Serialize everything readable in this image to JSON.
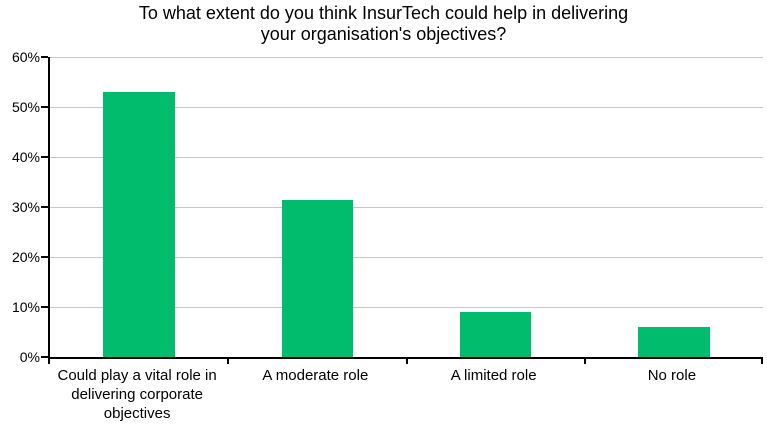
{
  "chart_data": {
    "type": "bar",
    "title": "To what extent do you think InsurTech could help in delivering your organisation's objectives?",
    "title_lines": [
      "To what extent do you think InsurTech could help in delivering",
      "your organisation's objectives?"
    ],
    "categories": [
      "Could play a vital role in delivering corporate objectives",
      "A moderate role",
      "A limited role",
      "No role"
    ],
    "values": [
      53,
      31.5,
      9,
      6
    ],
    "xlabel": "",
    "ylabel": "",
    "ylim": [
      0,
      60
    ],
    "ytick_step": 10,
    "ytick_labels": [
      "0%",
      "10%",
      "20%",
      "30%",
      "40%",
      "50%",
      "60%"
    ],
    "legend": "none",
    "grid": "horizontal",
    "bar_color": "#00BC6C",
    "gridline_color": "#C6C6C6",
    "axis_color": "#000000",
    "background_color": "#FFFFFF"
  }
}
